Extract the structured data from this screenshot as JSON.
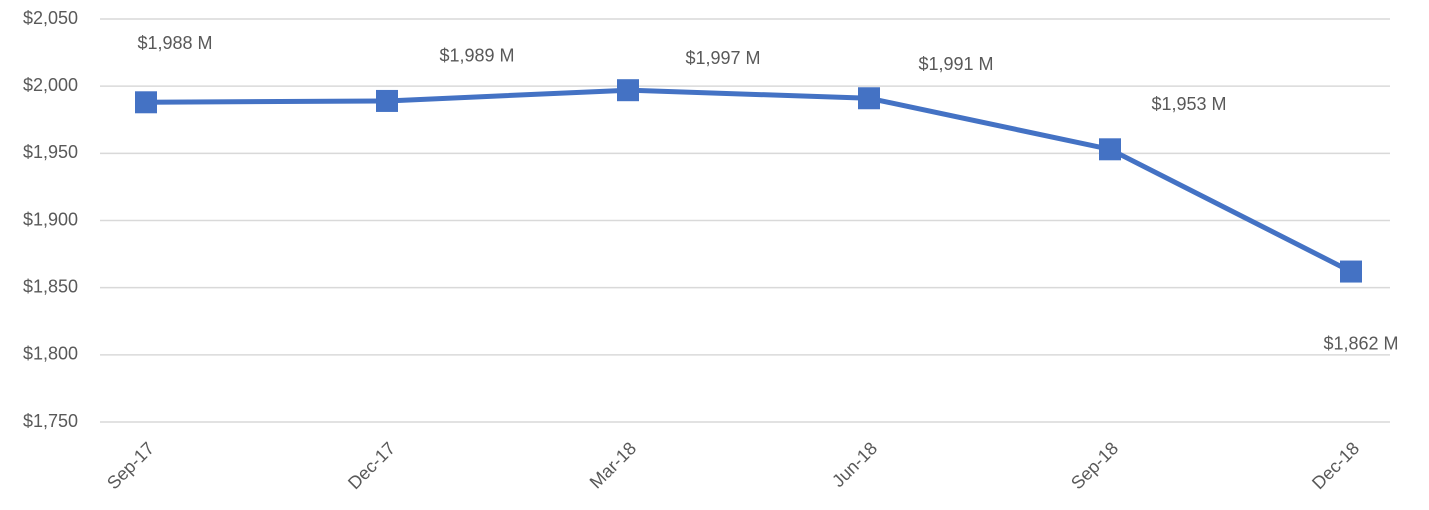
{
  "chart_data": {
    "type": "line",
    "categories": [
      "Sep-17",
      "Dec-17",
      "Mar-18",
      "Jun-18",
      "Sep-18",
      "Dec-18"
    ],
    "series": [
      {
        "color": "#4472c4",
        "values": [
          1988,
          1989,
          1997,
          1991,
          1953,
          1862
        ],
        "value_labels": [
          "$1,988 M",
          "$1,989 M",
          "$1,997 M",
          "$1,991 M",
          "$1,953 M",
          "$1,862 M"
        ]
      }
    ],
    "ylim": [
      1750,
      2050
    ],
    "yticks": [
      {
        "value": 1750,
        "label": "$1,750"
      },
      {
        "value": 1800,
        "label": "$1,800"
      },
      {
        "value": 1850,
        "label": "$1,850"
      },
      {
        "value": 1900,
        "label": "$1,900"
      },
      {
        "value": 1950,
        "label": "$1,950"
      },
      {
        "value": 2000,
        "label": "$2,000"
      },
      {
        "value": 2050,
        "label": "$2,050"
      }
    ],
    "grid": true
  }
}
